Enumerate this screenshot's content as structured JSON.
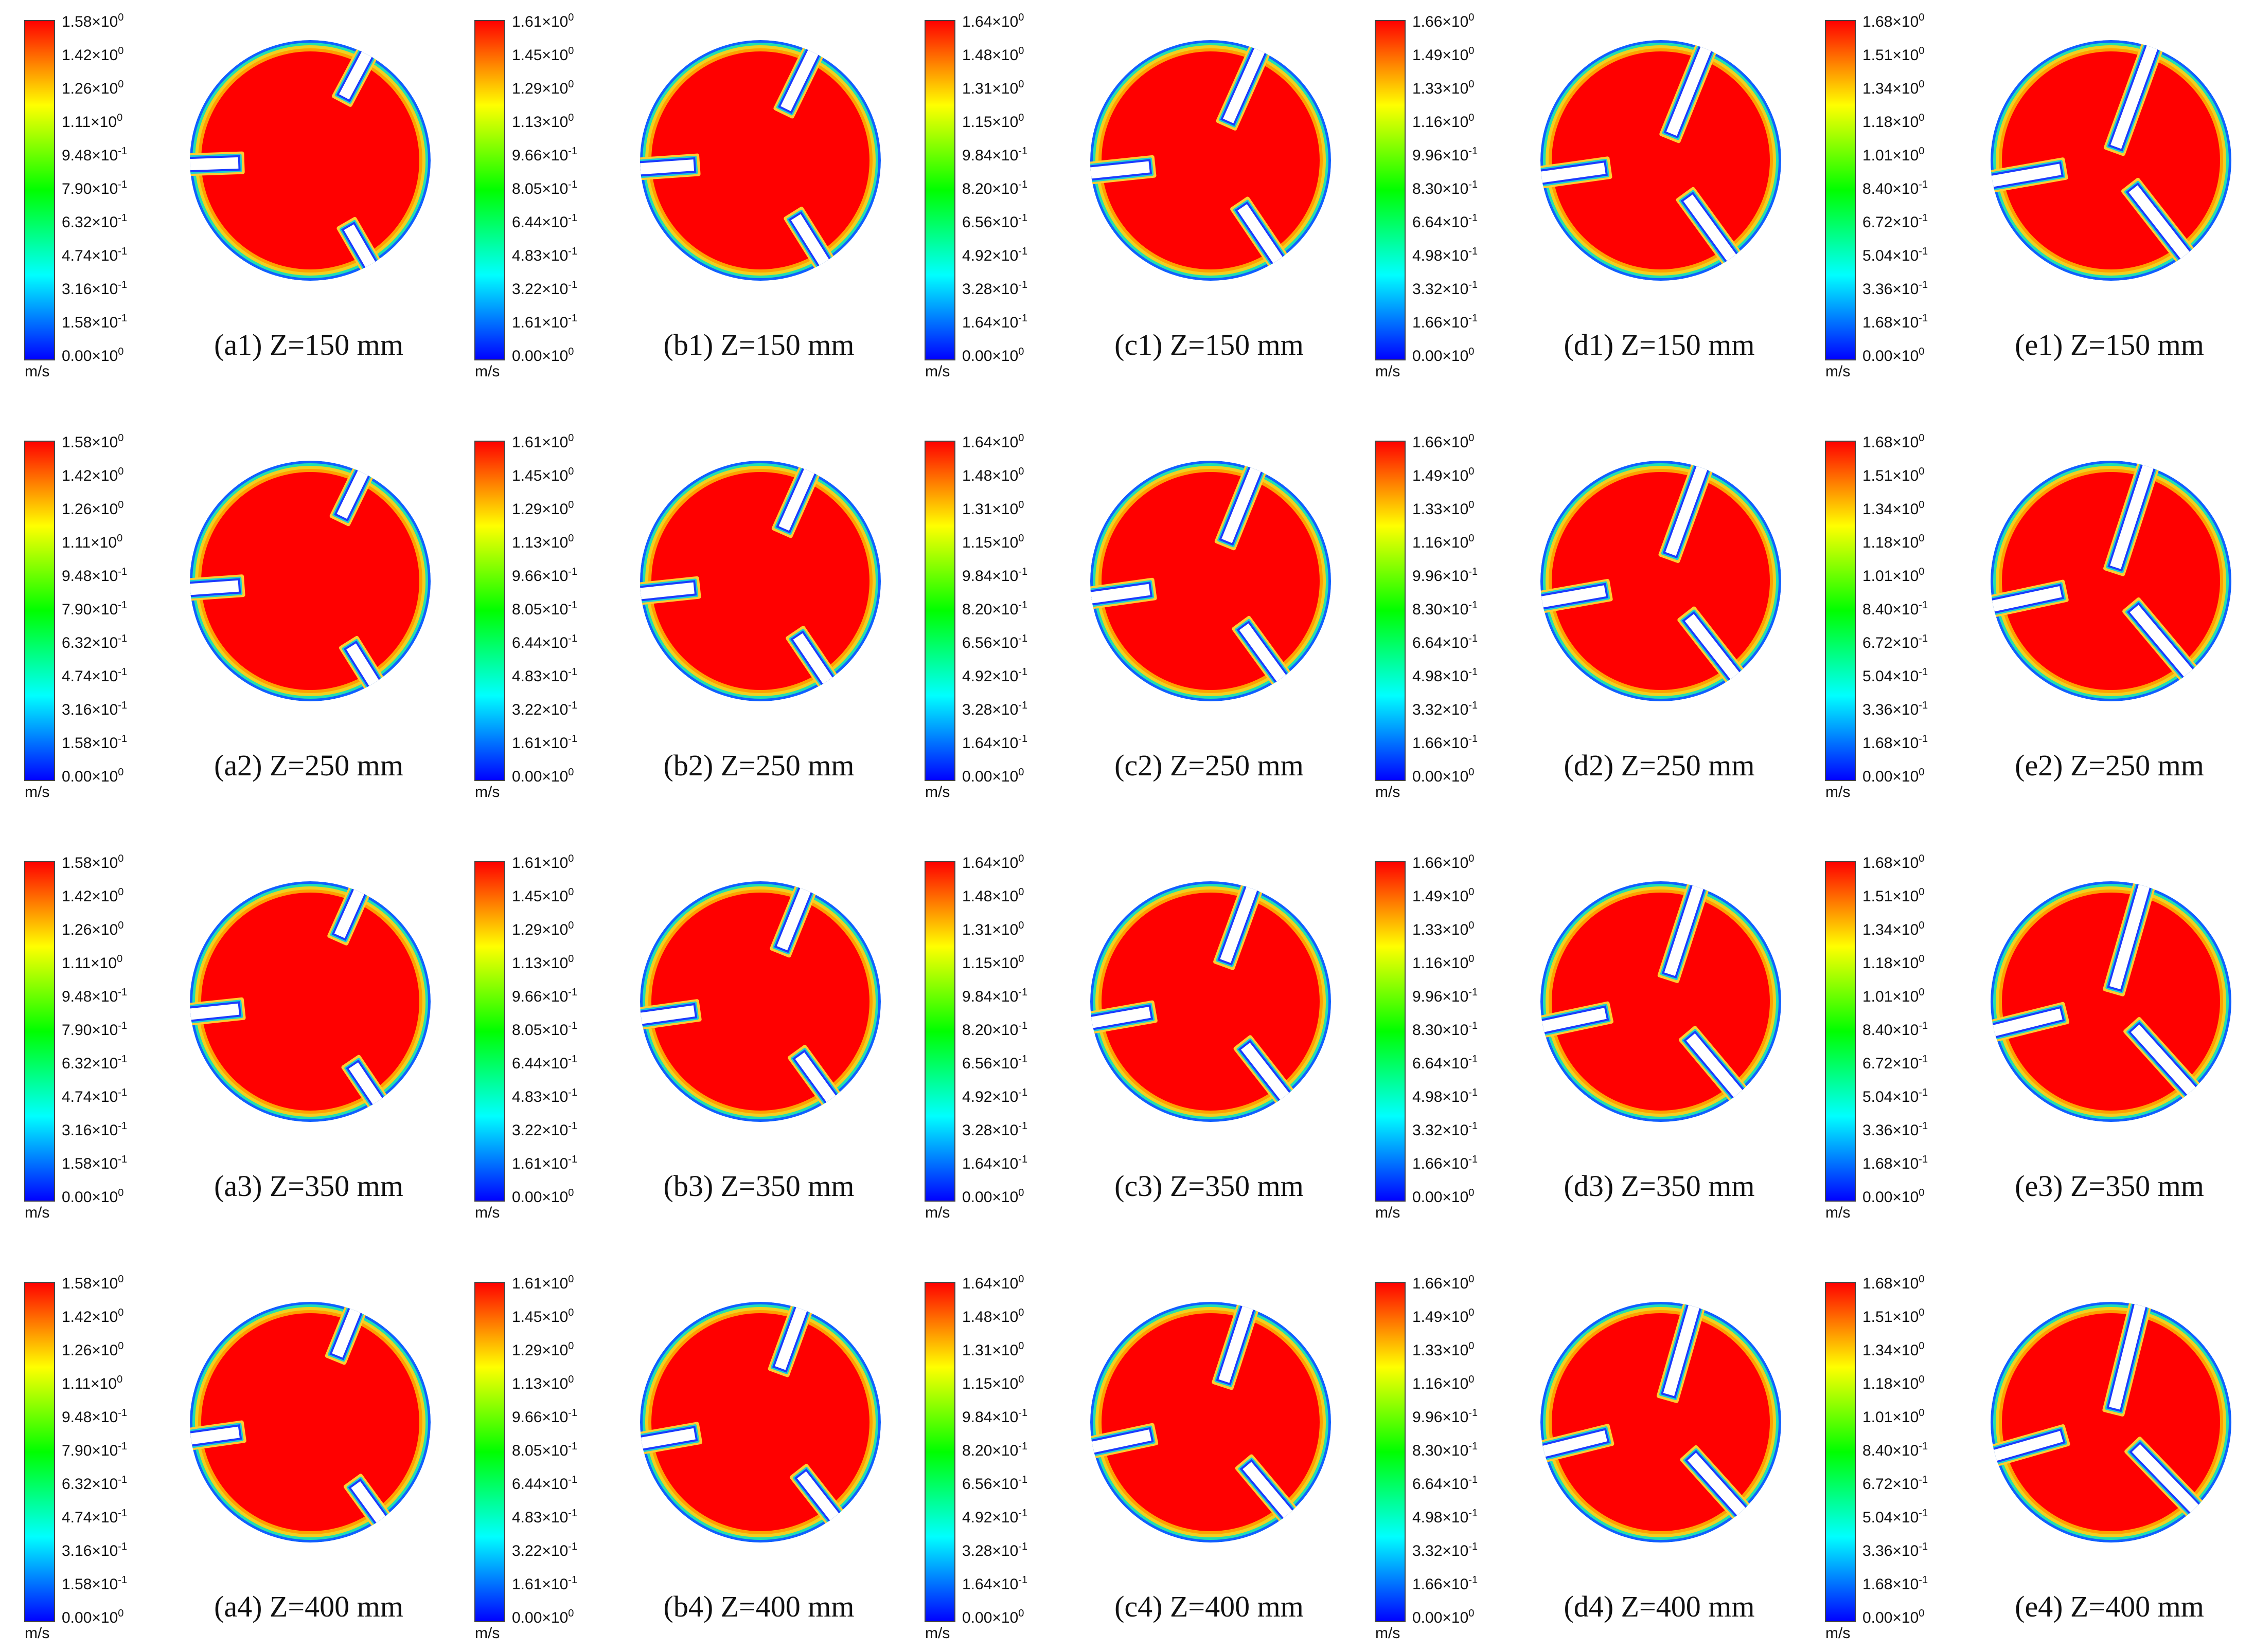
{
  "unit": "m/s",
  "columns": [
    {
      "letter": "a",
      "ticks": [
        "1.58×10^0",
        "1.42×10^0",
        "1.26×10^0",
        "1.11×10^0",
        "9.48×10^-1",
        "7.90×10^-1",
        "6.32×10^-1",
        "4.74×10^-1",
        "3.16×10^-1",
        "1.58×10^-1",
        "0.00×10^0"
      ]
    },
    {
      "letter": "b",
      "ticks": [
        "1.61×10^0",
        "1.45×10^0",
        "1.29×10^0",
        "1.13×10^0",
        "9.66×10^-1",
        "8.05×10^-1",
        "6.44×10^-1",
        "4.83×10^-1",
        "3.22×10^-1",
        "1.61×10^-1",
        "0.00×10^0"
      ]
    },
    {
      "letter": "c",
      "ticks": [
        "1.64×10^0",
        "1.48×10^0",
        "1.31×10^0",
        "1.15×10^0",
        "9.84×10^-1",
        "8.20×10^-1",
        "6.56×10^-1",
        "4.92×10^-1",
        "3.28×10^-1",
        "1.64×10^-1",
        "0.00×10^0"
      ]
    },
    {
      "letter": "d",
      "ticks": [
        "1.66×10^0",
        "1.49×10^0",
        "1.33×10^0",
        "1.16×10^0",
        "9.96×10^-1",
        "8.30×10^-1",
        "6.64×10^-1",
        "4.98×10^-1",
        "3.32×10^-1",
        "1.66×10^-1",
        "0.00×10^0"
      ]
    },
    {
      "letter": "e",
      "ticks": [
        "1.68×10^0",
        "1.51×10^0",
        "1.34×10^0",
        "1.18×10^0",
        "1.01×10^0",
        "8.40×10^-1",
        "6.72×10^-1",
        "5.04×10^-1",
        "3.36×10^-1",
        "1.68×10^-1",
        "0.00×10^0"
      ]
    }
  ],
  "rows": [
    {
      "index": "1",
      "label": "Z=150 mm"
    },
    {
      "index": "2",
      "label": "Z=250 mm"
    },
    {
      "index": "3",
      "label": "Z=350 mm"
    },
    {
      "index": "4",
      "label": "Z=400 mm"
    }
  ],
  "colors": {
    "colormap": [
      "#0000ff",
      "#0080ff",
      "#00ffff",
      "#00ff80",
      "#00ff00",
      "#80ff00",
      "#ffff00",
      "#ff8000",
      "#ff0000"
    ],
    "core": "#ff0000",
    "edge_outer": "#1060ff",
    "edge_mid": "#20e0b0",
    "edge_inner": "#f0d020",
    "slot_fill": "#ffffff"
  }
}
